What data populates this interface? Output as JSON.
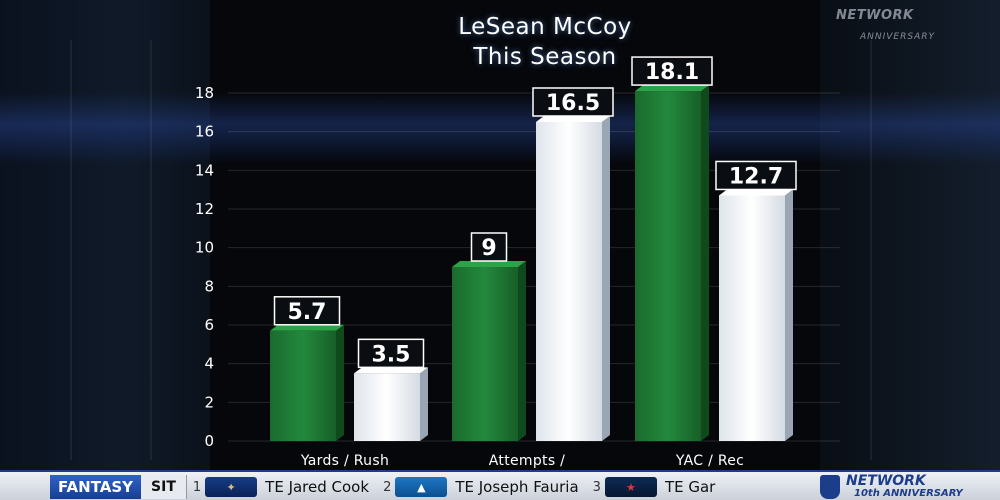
{
  "title_lines": [
    "LeSean McCoy",
    "This Season"
  ],
  "watermark": {
    "main": "NETWORK",
    "sub": "ANNIVERSARY"
  },
  "chart_data": {
    "type": "bar",
    "title": "LeSean McCoy This Season",
    "categories": [
      "Yards / Rush",
      "Attempts / Explosive Rush",
      "YAC / Rec"
    ],
    "category_labels": [
      "Yards / Rush",
      "Attempts /",
      "YAC / Rec"
    ],
    "series": [
      {
        "values": [
          5.7,
          9,
          18.1
        ],
        "color": "#1f7a34"
      },
      {
        "values": [
          3.5,
          16.5,
          12.7
        ],
        "color": "#eef2f6"
      }
    ],
    "value_labels": [
      [
        "5.7",
        "9",
        "18.1"
      ],
      [
        "3.5",
        "16.5",
        "12.7"
      ]
    ],
    "yticks": [
      0,
      2,
      4,
      6,
      8,
      10,
      12,
      14,
      16,
      18
    ],
    "ylim": [
      0,
      18
    ],
    "xlabel": "",
    "ylabel": "",
    "grid": true
  },
  "ticker": {
    "label": "FANTASY",
    "mode": "SIT",
    "items": [
      {
        "rank": "1",
        "team_icon": "rams-logo",
        "player": "TE Jared Cook"
      },
      {
        "rank": "2",
        "team_icon": "lions-logo",
        "player": "TE Joseph Fauria"
      },
      {
        "rank": "3",
        "team_icon": "texans-logo",
        "player": "TE Gar"
      }
    ],
    "brand_main": "NETWORK",
    "brand_sub": "10th ANNIVERSARY"
  },
  "colors": {
    "green_bar": "#1f7a34",
    "white_bar": "#eef2f6",
    "ticker_blue": "#1c3d8a"
  }
}
